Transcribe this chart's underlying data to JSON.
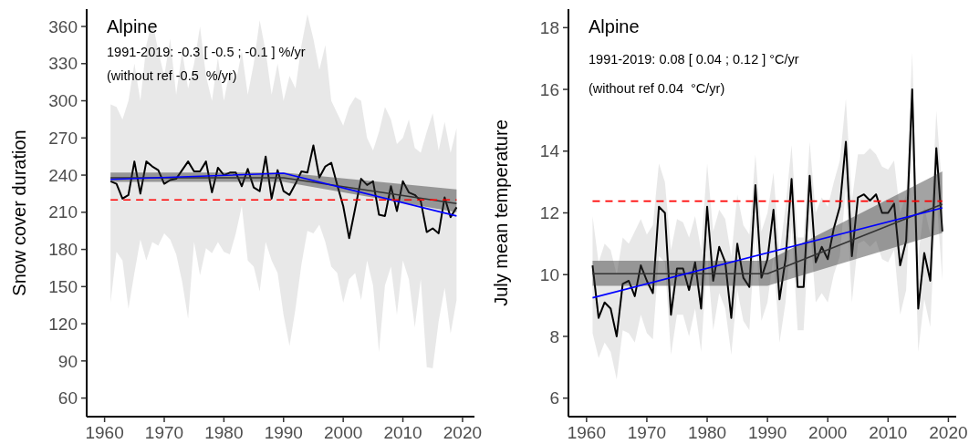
{
  "chart_data": [
    {
      "type": "line",
      "title": "Alpine",
      "ylabel": "Snow cover duration",
      "annotations": [
        "1991-2019: -0.3 [ -0.5 ; -0.1 ] %/yr",
        "(without ref -0.5  %/yr)"
      ],
      "xlim": [
        1957,
        2022
      ],
      "xticks": [
        1960,
        1970,
        1980,
        1990,
        2000,
        2010,
        2020
      ],
      "ylim": [
        45,
        374
      ],
      "yticks": [
        60,
        90,
        120,
        150,
        180,
        210,
        240,
        270,
        300,
        330,
        360
      ],
      "grid": false,
      "ref_lines": [
        {
          "axis": "y",
          "value": 220,
          "color": "#ff0000",
          "line_style": "dashed"
        }
      ],
      "series": [
        {
          "color": "#000000",
          "x": [
            1961,
            1962,
            1963,
            1964,
            1965,
            1966,
            1967,
            1968,
            1969,
            1970,
            1971,
            1972,
            1973,
            1974,
            1975,
            1976,
            1977,
            1978,
            1979,
            1980,
            1981,
            1982,
            1983,
            1984,
            1985,
            1986,
            1987,
            1988,
            1989,
            1990,
            1991,
            1992,
            1993,
            1994,
            1995,
            1996,
            1997,
            1998,
            1999,
            2000,
            2001,
            2002,
            2003,
            2004,
            2005,
            2006,
            2007,
            2008,
            2009,
            2010,
            2011,
            2012,
            2013,
            2014,
            2015,
            2016,
            2017,
            2018,
            2019
          ],
          "values": [
            235,
            233,
            221,
            224,
            251,
            225,
            251,
            247,
            244,
            233,
            236,
            237,
            244,
            251,
            243,
            243,
            251,
            226,
            246,
            240,
            242,
            242,
            231,
            245,
            230,
            227,
            255,
            221,
            244,
            227,
            224,
            233,
            243,
            242,
            264,
            238,
            247,
            250,
            232,
            215,
            189,
            213,
            237,
            232,
            235,
            208,
            207,
            231,
            211,
            235,
            226,
            224,
            219,
            194,
            197,
            193,
            222,
            206,
            214
          ],
          "lower": [
            137,
            178,
            171,
            132,
            161,
            188,
            171,
            186,
            183,
            193,
            188,
            176,
            154,
            124,
            186,
            159,
            181,
            177,
            186,
            178,
            176,
            193,
            215,
            171,
            166,
            146,
            186,
            171,
            161,
            127,
            102,
            132,
            168,
            195,
            193,
            200,
            186,
            166,
            161,
            137,
            156,
            161,
            139,
            171,
            151,
            97,
            151,
            166,
            127,
            171,
            156,
            117,
            156,
            85,
            84,
            122,
            149,
            112,
            139
          ],
          "upper": [
            297,
            295,
            285,
            300,
            330,
            300,
            345,
            365,
            340,
            320,
            350,
            305,
            340,
            310,
            330,
            360,
            320,
            300,
            335,
            300,
            325,
            315,
            340,
            305,
            330,
            365,
            340,
            305,
            330,
            300,
            320,
            310,
            345,
            370,
            350,
            325,
            345,
            300,
            290,
            280,
            295,
            303,
            300,
            270,
            260,
            275,
            295,
            285,
            265,
            270,
            285,
            262,
            258,
            275,
            290,
            260,
            283,
            258,
            278
          ]
        },
        {
          "color": "#333333",
          "x": [
            1961,
            1990,
            2019
          ],
          "values": [
            237.8,
            237.8,
            217
          ],
          "lower": [
            234.6,
            234.6,
            210
          ],
          "upper": [
            242,
            242,
            228.5
          ]
        },
        {
          "color": "#0000ff",
          "x": [
            1961,
            1990,
            2019
          ],
          "values": [
            236.6,
            241.5,
            207
          ]
        }
      ]
    },
    {
      "type": "line",
      "title": "Alpine",
      "ylabel": "July mean temperature",
      "annotations": [
        "1991-2019: 0.08 [ 0.04 ; 0.12 ] °C/yr",
        "(without ref 0.04  °C/yr)"
      ],
      "xlim": [
        1957,
        2021.3
      ],
      "xticks": [
        1960,
        1970,
        1980,
        1990,
        2000,
        2010,
        2020
      ],
      "ylim": [
        5.4,
        18.6
      ],
      "yticks": [
        6,
        8,
        10,
        12,
        14,
        16,
        18
      ],
      "grid": false,
      "ref_lines": [
        {
          "axis": "y",
          "value": 12.38,
          "color": "#ff0000",
          "line_style": "dashed"
        }
      ],
      "series": [
        {
          "color": "#000000",
          "x": [
            1961,
            1962,
            1963,
            1964,
            1965,
            1966,
            1967,
            1968,
            1969,
            1970,
            1971,
            1972,
            1973,
            1974,
            1975,
            1976,
            1977,
            1978,
            1979,
            1980,
            1981,
            1982,
            1983,
            1984,
            1985,
            1986,
            1987,
            1988,
            1989,
            1990,
            1991,
            1992,
            1993,
            1994,
            1995,
            1996,
            1997,
            1998,
            1999,
            2000,
            2001,
            2002,
            2003,
            2004,
            2005,
            2006,
            2007,
            2008,
            2009,
            2010,
            2011,
            2012,
            2013,
            2014,
            2015,
            2016,
            2017,
            2018,
            2019
          ],
          "values": [
            10.3,
            8.6,
            9.1,
            8.9,
            8.0,
            9.7,
            9.8,
            9.3,
            10.3,
            9.8,
            9.4,
            12.2,
            12.0,
            8.7,
            10.2,
            10.2,
            9.5,
            10.4,
            8.9,
            12.2,
            9.8,
            10.9,
            10.4,
            8.6,
            11.0,
            9.9,
            9.6,
            12.9,
            9.9,
            10.5,
            12.1,
            9.2,
            10.5,
            13.1,
            9.6,
            9.6,
            13.2,
            10.4,
            10.9,
            10.5,
            11.5,
            12.2,
            14.3,
            10.6,
            12.5,
            12.6,
            12.4,
            12.6,
            12.0,
            12.0,
            12.3,
            10.3,
            11.1,
            16.0,
            8.9,
            10.7,
            9.8,
            14.1,
            11.4
          ],
          "lower": [
            8.1,
            7.3,
            7.8,
            7.5,
            6.6,
            8.2,
            8.1,
            7.8,
            8.7,
            8.1,
            7.9,
            10.6,
            10.4,
            7.4,
            8.7,
            8.7,
            8.0,
            8.9,
            7.5,
            10.6,
            8.2,
            9.4,
            8.9,
            7.4,
            9.5,
            8.5,
            8.2,
            11.4,
            8.5,
            9.1,
            10.6,
            7.8,
            9.1,
            11.6,
            8.2,
            8.2,
            11.7,
            9.1,
            9.4,
            9.1,
            10.0,
            10.6,
            12.8,
            9.1,
            11.0,
            11.1,
            10.9,
            11.1,
            10.5,
            10.4,
            10.8,
            8.7,
            9.5,
            14.1,
            7.5,
            9.2,
            8.3,
            12.6,
            9.8
          ],
          "upper": [
            11.9,
            10.4,
            11.0,
            10.8,
            10.0,
            11.2,
            11.0,
            11.4,
            11.8,
            11.3,
            11.6,
            13.6,
            13.0,
            10.8,
            11.8,
            11.7,
            11.2,
            11.9,
            10.8,
            13.6,
            11.4,
            12.1,
            11.8,
            10.6,
            12.6,
            11.6,
            11.3,
            13.9,
            11.4,
            12.0,
            13.3,
            10.7,
            12.2,
            14.2,
            11.2,
            11.2,
            14.3,
            12.0,
            12.5,
            12.2,
            13.0,
            13.7,
            15.7,
            12.4,
            13.9,
            13.9,
            14.1,
            13.9,
            13.5,
            13.4,
            13.7,
            12.0,
            12.6,
            17.2,
            10.6,
            12.2,
            11.3,
            15.3,
            12.7
          ]
        },
        {
          "color": "#333333",
          "x": [
            1961,
            1990,
            2019
          ],
          "values": [
            10.03,
            10.03,
            12.28
          ],
          "lower": [
            9.64,
            9.64,
            11.35
          ],
          "upper": [
            10.45,
            10.45,
            13.34
          ]
        },
        {
          "color": "#0000ff",
          "x": [
            1961,
            2019
          ],
          "values": [
            9.25,
            12.16
          ]
        }
      ]
    }
  ]
}
